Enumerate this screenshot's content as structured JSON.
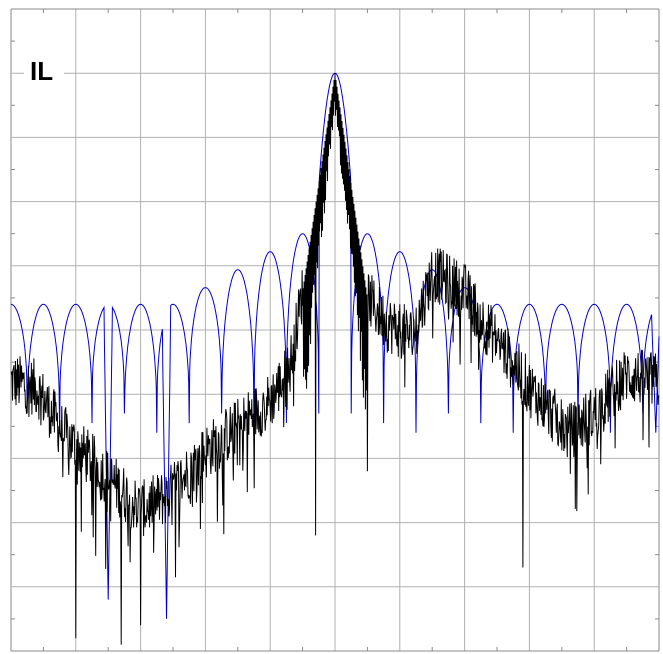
{
  "chart_data": {
    "type": "line",
    "title": "IL",
    "xlabel": "",
    "ylabel": "",
    "xlim": [
      -5,
      5
    ],
    "ylim": [
      -10,
      0
    ],
    "grid": true,
    "grid_divisions": {
      "x": 10,
      "y": 10
    },
    "series": [
      {
        "color": "#0000cc",
        "shape": "sinc-magnitude",
        "peak": {
          "x": 0,
          "y": -1.0
        },
        "first_lobe_peak": -3.5,
        "outer_lobe_floor": -4.6,
        "lobe_spacing": 0.5,
        "null_depth_range": [
          -6.3,
          -7.2
        ],
        "deep_nulls": [
          {
            "x": -3.5,
            "y": -9.2
          },
          {
            "x": -2.6,
            "y": -9.5
          },
          {
            "x": 4.95,
            "y": -6.6
          }
        ]
      },
      {
        "color": "#000000",
        "shape": "noisy-response",
        "baseline": [
          [
            -5.0,
            -5.8
          ],
          [
            -4.6,
            -5.9
          ],
          [
            -4.2,
            -6.6
          ],
          [
            -3.6,
            -7.2
          ],
          [
            -3.0,
            -7.8
          ],
          [
            -2.6,
            -7.6
          ],
          [
            -2.0,
            -6.9
          ],
          [
            -1.5,
            -6.5
          ],
          [
            -1.0,
            -6.1
          ],
          [
            -0.7,
            -5.6
          ],
          [
            -0.5,
            -4.4
          ],
          [
            0.5,
            -4.5
          ],
          [
            0.8,
            -4.9
          ],
          [
            1.2,
            -5.1
          ],
          [
            1.5,
            -4.1
          ],
          [
            2.0,
            -4.4
          ],
          [
            2.3,
            -4.9
          ],
          [
            2.6,
            -5.3
          ],
          [
            3.0,
            -5.9
          ],
          [
            3.6,
            -6.6
          ],
          [
            4.0,
            -6.3
          ],
          [
            4.5,
            -5.7
          ],
          [
            5.0,
            -5.8
          ]
        ],
        "noise_amplitude": 0.45,
        "central_peak": {
          "x": 0,
          "y": -1.0
        },
        "deep_dips": [
          {
            "x": -4.0,
            "y": -9.8
          },
          {
            "x": -3.3,
            "y": -9.9
          },
          {
            "x": -3.0,
            "y": -9.6
          },
          {
            "x": -0.3,
            "y": -8.2
          },
          {
            "x": 0.5,
            "y": -7.2
          },
          {
            "x": 2.9,
            "y": -8.7
          }
        ]
      }
    ]
  }
}
